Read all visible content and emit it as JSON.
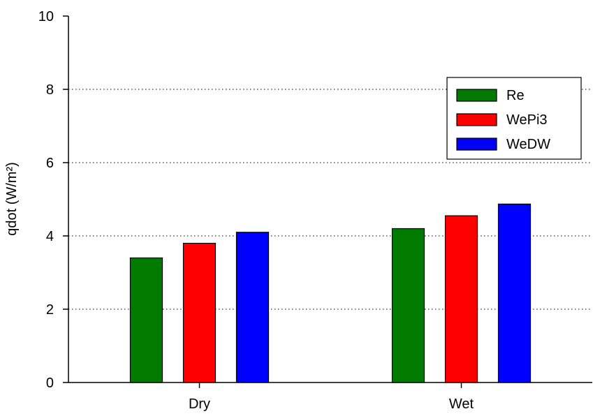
{
  "chart_data": {
    "type": "bar",
    "title": "",
    "xlabel": "",
    "ylabel": "qdot (W/m²)",
    "ylim": [
      0,
      10
    ],
    "yticks": [
      0,
      2,
      4,
      6,
      8,
      10
    ],
    "grid": "dotted horizontal",
    "legend_position": "upper-right",
    "categories": [
      "Dry",
      "Wet"
    ],
    "series": [
      {
        "name": "Re",
        "color": "#007a00",
        "values": [
          3.4,
          4.2
        ]
      },
      {
        "name": "WePi3",
        "color": "#ff0000",
        "values": [
          3.8,
          4.55
        ]
      },
      {
        "name": "WeDW",
        "color": "#0000ff",
        "values": [
          4.1,
          4.87
        ]
      }
    ]
  }
}
